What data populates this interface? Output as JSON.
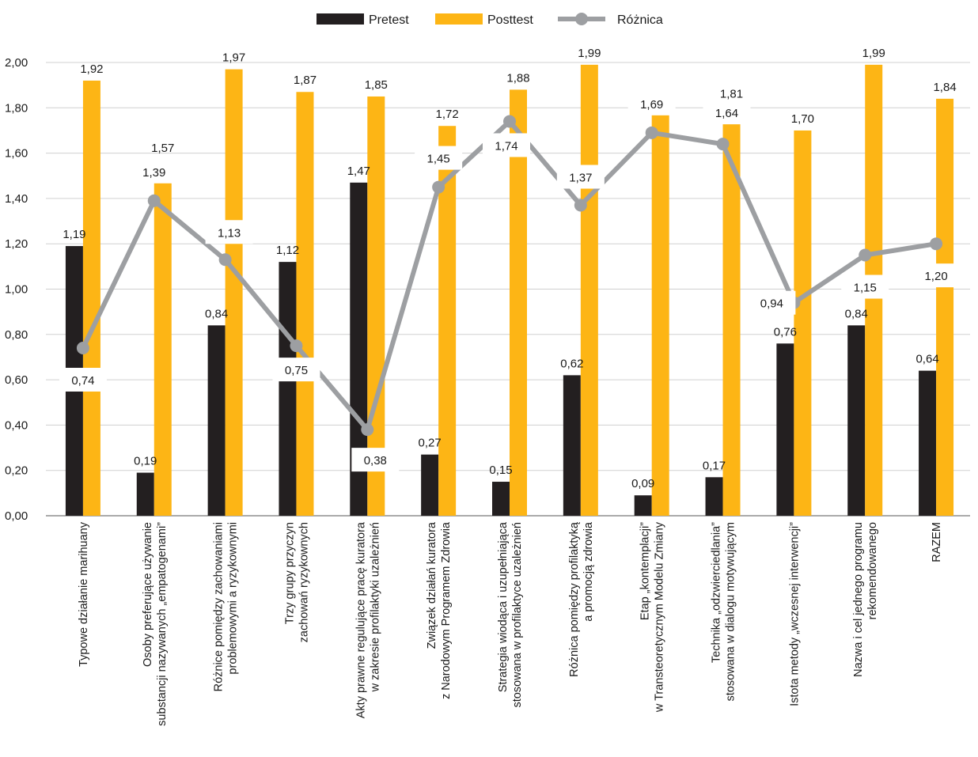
{
  "chart_data": {
    "type": "bar",
    "title": "",
    "xlabel": "",
    "ylabel": "",
    "ylim": [
      0,
      2
    ],
    "yticks": [
      "0,00",
      "0,20",
      "0,40",
      "0,60",
      "0,80",
      "1,00",
      "1,20",
      "1,40",
      "1,60",
      "1,80",
      "2,00"
    ],
    "grid": true,
    "legend_position": "top-center",
    "categories": [
      [
        "Typowe działanie marihuany"
      ],
      [
        "Osoby preferujące używanie",
        "substancji nazywanych „empatogenami”"
      ],
      [
        "Różnice pomiędzy zachowaniami",
        "problemowymi a ryzykownymi"
      ],
      [
        "Trzy grupy przyczyn",
        "zachowań ryzykownych"
      ],
      [
        "Akty prawne regulujące pracę kuratora",
        "w zakresie profilaktyki uzależnień"
      ],
      [
        "Związek działań kuratora",
        "z Narodowym Programem Zdrowia"
      ],
      [
        "Strategia wiodąca i uzupełniająca",
        "stosowana w profilaktyce uzależnień"
      ],
      [
        "Różnica pomiędzy profilaktyką",
        "a promocją zdrowia"
      ],
      [
        "Etap „kontemplacji”",
        "w Transteoretycznym Modelu Zmiany"
      ],
      [
        "Technika „odzwierciedlania”",
        "stosowana w dialogu motywującym"
      ],
      [
        "Istota metody „wczesnej interwencji”"
      ],
      [
        "Nazwa i cel jednego programu",
        "rekomendowanego"
      ],
      [
        "RAZEM"
      ]
    ],
    "series": [
      {
        "name": "Pretest",
        "type": "bar",
        "color": "#231f20",
        "values": [
          1.19,
          0.19,
          0.84,
          1.12,
          1.47,
          0.27,
          0.15,
          0.62,
          0.09,
          0.17,
          0.76,
          0.84,
          0.64
        ],
        "labels": [
          "1,19",
          "0,19",
          "0,84",
          "1,12",
          "1,47",
          "0,27",
          "0,15",
          "0,62",
          "0,09",
          "0,17",
          "0,76",
          "0,84",
          "0,64"
        ]
      },
      {
        "name": "Posttest",
        "type": "bar",
        "color": "#fdb515",
        "values": [
          1.92,
          1.57,
          1.97,
          1.87,
          1.85,
          1.72,
          1.88,
          1.99,
          1.78,
          1.81,
          1.7,
          1.99,
          1.84
        ],
        "labels": [
          "1,92",
          "1,57",
          "1,97",
          "1,87",
          "1,85",
          "1,72",
          "1,88",
          "1,99",
          "1,78",
          "1,81",
          "1,70",
          "1,99",
          "1,84"
        ]
      },
      {
        "name": "Różnica",
        "type": "line",
        "color": "#9d9fa2",
        "values": [
          0.74,
          1.39,
          1.13,
          0.75,
          0.38,
          1.45,
          1.74,
          1.37,
          1.69,
          1.64,
          0.94,
          1.15,
          1.2
        ],
        "labels": [
          "0,74",
          "1,39",
          "1,13",
          "0,75",
          "0,38",
          "1,45",
          "1,74",
          "1,37",
          "1,69",
          "1,64",
          "0,94",
          "1,15",
          "1,20"
        ]
      }
    ]
  }
}
